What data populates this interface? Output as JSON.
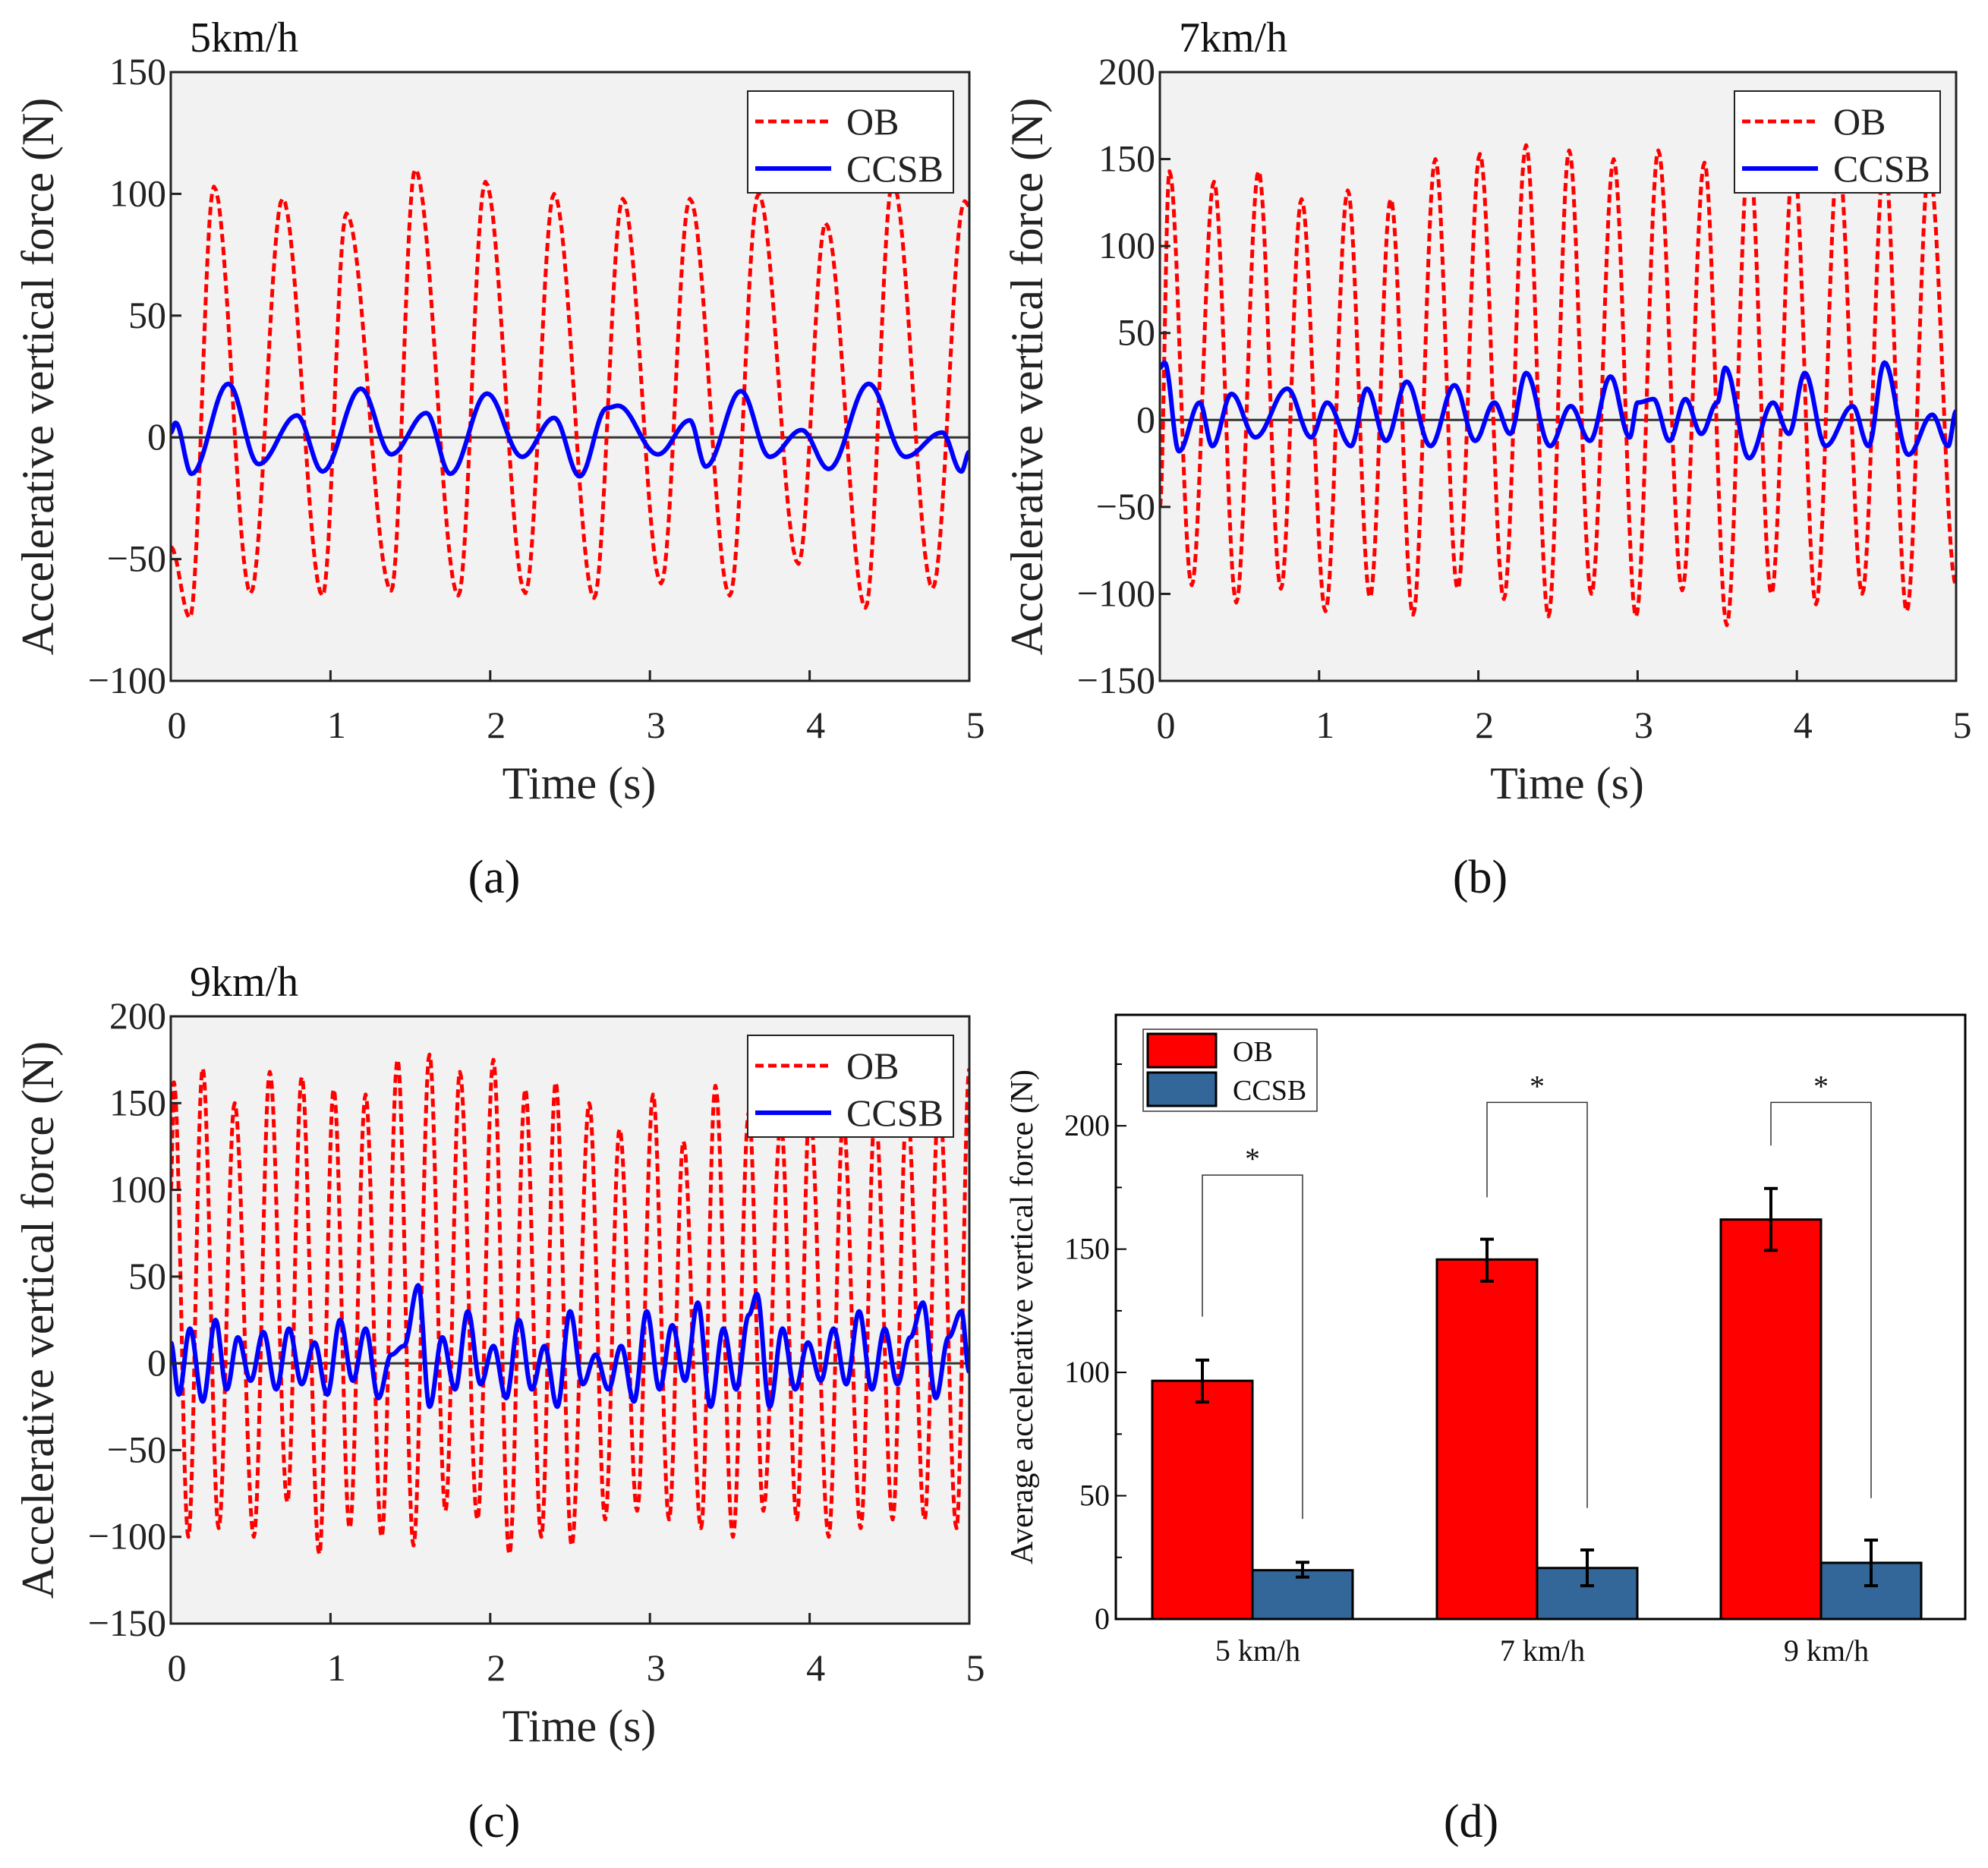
{
  "colors": {
    "ob": "#ff0000",
    "ccsb": "#0000ff",
    "bar_ob": "#ff0000",
    "bar_ccsb": "#336699",
    "plot_bg": "#f2f2f2"
  },
  "chart_data": [
    {
      "type": "line",
      "panel_label": "(a)",
      "title": "5km/h",
      "xlabel": "Time (s)",
      "ylabel": "Accelerative vertical force (N)",
      "xlim": [
        0,
        5
      ],
      "ylim": [
        -100,
        150
      ],
      "xticks": [
        0,
        1,
        2,
        3,
        4,
        5
      ],
      "yticks": [
        -100,
        -50,
        0,
        50,
        100,
        150
      ],
      "ytick_labels": [
        "−100",
        "−50",
        "0",
        "50",
        "100",
        "150"
      ],
      "legend": {
        "placement": "top-right",
        "entries": [
          "OB",
          "CCSB"
        ]
      },
      "series": [
        {
          "name": "OB",
          "style": "dashed",
          "t": [
            0,
            0.12,
            0.27,
            0.5,
            0.7,
            0.95,
            1.1,
            1.38,
            1.53,
            1.8,
            1.97,
            2.22,
            2.4,
            2.65,
            2.83,
            3.07,
            3.25,
            3.5,
            3.68,
            3.93,
            4.1,
            4.35,
            4.52,
            4.77,
            4.97,
            5.0
          ],
          "v": [
            -45,
            -74,
            103,
            -64,
            98,
            -65,
            92,
            -63,
            110,
            -65,
            105,
            -64,
            100,
            -66,
            98,
            -60,
            98,
            -65,
            100,
            -52,
            88,
            -70,
            105,
            -62,
            97,
            95
          ]
        },
        {
          "name": "CCSB",
          "style": "solid",
          "t": [
            0,
            0.03,
            0.13,
            0.36,
            0.55,
            0.79,
            0.95,
            1.19,
            1.38,
            1.6,
            1.75,
            1.98,
            2.2,
            2.4,
            2.56,
            2.73,
            2.8,
            3.05,
            3.25,
            3.35,
            3.57,
            3.75,
            3.95,
            4.12,
            4.37,
            4.6,
            4.83,
            4.95,
            5.0
          ],
          "v": [
            2,
            6,
            -15,
            22,
            -11,
            9,
            -14,
            20,
            -7,
            10,
            -15,
            18,
            -8,
            8,
            -16,
            12,
            13,
            -7,
            7,
            -12,
            19,
            -8,
            3,
            -13,
            22,
            -8,
            2,
            -14,
            -6
          ]
        }
      ]
    },
    {
      "type": "line",
      "panel_label": "(b)",
      "title": "7km/h",
      "xlabel": "Time (s)",
      "ylabel": "Accelerative vertical force (N)",
      "xlim": [
        0,
        5
      ],
      "ylim": [
        -150,
        200
      ],
      "xticks": [
        0,
        1,
        2,
        3,
        4,
        5
      ],
      "yticks": [
        -150,
        -100,
        -50,
        0,
        50,
        100,
        150,
        200
      ],
      "ytick_labels": [
        "−150",
        "−100",
        "−50",
        "0",
        "50",
        "100",
        "150",
        "200"
      ],
      "legend": {
        "placement": "top-right",
        "entries": [
          "OB",
          "CCSB"
        ]
      },
      "series": [
        {
          "name": "OB",
          "style": "dashed",
          "t": [
            0,
            0.06,
            0.2,
            0.34,
            0.48,
            0.62,
            0.76,
            0.89,
            1.04,
            1.18,
            1.32,
            1.45,
            1.59,
            1.73,
            1.87,
            2.01,
            2.16,
            2.3,
            2.44,
            2.57,
            2.71,
            2.85,
            2.99,
            3.13,
            3.28,
            3.42,
            3.56,
            3.7,
            3.84,
            3.98,
            4.12,
            4.26,
            4.41,
            4.55,
            4.69,
            4.83,
            5.0
          ],
          "v": [
            -50,
            143,
            -95,
            137,
            -105,
            143,
            -97,
            127,
            -110,
            132,
            -102,
            127,
            -112,
            150,
            -97,
            153,
            -103,
            158,
            -113,
            155,
            -100,
            150,
            -113,
            155,
            -98,
            148,
            -118,
            155,
            -100,
            150,
            -106,
            152,
            -100,
            150,
            -110,
            145,
            -95
          ]
        },
        {
          "name": "CCSB",
          "style": "solid",
          "t": [
            0,
            0.03,
            0.12,
            0.25,
            0.33,
            0.45,
            0.6,
            0.8,
            0.95,
            1.05,
            1.2,
            1.3,
            1.42,
            1.55,
            1.7,
            1.85,
            1.98,
            2.1,
            2.2,
            2.3,
            2.45,
            2.58,
            2.7,
            2.83,
            2.95,
            3.0,
            3.1,
            3.2,
            3.3,
            3.4,
            3.5,
            3.55,
            3.7,
            3.85,
            3.95,
            4.05,
            4.18,
            4.35,
            4.45,
            4.55,
            4.7,
            4.85,
            4.95,
            5.0
          ],
          "v": [
            30,
            33,
            -18,
            10,
            -15,
            15,
            -10,
            18,
            -10,
            10,
            -15,
            18,
            -12,
            22,
            -15,
            20,
            -12,
            10,
            -8,
            27,
            -15,
            8,
            -12,
            25,
            -10,
            10,
            12,
            -12,
            12,
            -8,
            10,
            30,
            -22,
            10,
            -8,
            27,
            -15,
            8,
            -15,
            33,
            -20,
            3,
            -15,
            5
          ]
        }
      ]
    },
    {
      "type": "line",
      "panel_label": "(c)",
      "title": "9km/h",
      "xlabel": "Time (s)",
      "ylabel": "Accelerative vertical force (N)",
      "xlim": [
        0,
        5
      ],
      "ylim": [
        -150,
        200
      ],
      "xticks": [
        0,
        1,
        2,
        3,
        4,
        5
      ],
      "yticks": [
        -150,
        -100,
        -50,
        0,
        50,
        100,
        150,
        200
      ],
      "ytick_labels": [
        "−150",
        "−100",
        "−50",
        "0",
        "50",
        "100",
        "150",
        "200"
      ],
      "legend": {
        "placement": "top-right",
        "entries": [
          "OB",
          "CCSB"
        ]
      },
      "series": [
        {
          "name": "OB",
          "style": "dashed",
          "t": [
            0,
            0.02,
            0.11,
            0.2,
            0.3,
            0.4,
            0.52,
            0.62,
            0.73,
            0.82,
            0.93,
            1.02,
            1.12,
            1.22,
            1.32,
            1.42,
            1.52,
            1.62,
            1.72,
            1.81,
            1.92,
            2.02,
            2.12,
            2.22,
            2.32,
            2.41,
            2.51,
            2.62,
            2.72,
            2.81,
            2.92,
            3.02,
            3.12,
            3.21,
            3.32,
            3.41,
            3.52,
            3.62,
            3.71,
            3.82,
            3.92,
            4.0,
            4.12,
            4.21,
            4.32,
            4.41,
            4.52,
            4.61,
            4.72,
            4.81,
            4.92,
            5.0
          ],
          "v": [
            100,
            162,
            -100,
            170,
            -95,
            150,
            -100,
            168,
            -80,
            165,
            -110,
            158,
            -95,
            155,
            -100,
            175,
            -105,
            178,
            -85,
            168,
            -90,
            175,
            -110,
            158,
            -100,
            162,
            -105,
            150,
            -90,
            135,
            -85,
            155,
            -90,
            128,
            -95,
            160,
            -100,
            145,
            -85,
            138,
            -90,
            148,
            -100,
            140,
            -95,
            145,
            -90,
            150,
            -90,
            155,
            -95,
            170
          ]
        },
        {
          "name": "CCSB",
          "style": "solid",
          "t": [
            0,
            0.05,
            0.12,
            0.2,
            0.28,
            0.35,
            0.42,
            0.5,
            0.58,
            0.66,
            0.74,
            0.82,
            0.9,
            0.98,
            1.06,
            1.14,
            1.22,
            1.3,
            1.38,
            1.46,
            1.55,
            1.62,
            1.7,
            1.78,
            1.86,
            1.94,
            2.02,
            2.1,
            2.18,
            2.26,
            2.34,
            2.42,
            2.5,
            2.58,
            2.66,
            2.74,
            2.82,
            2.9,
            2.98,
            3.06,
            3.14,
            3.22,
            3.3,
            3.38,
            3.46,
            3.54,
            3.62,
            3.67,
            3.75,
            3.83,
            3.91,
            3.99,
            4.07,
            4.15,
            4.23,
            4.31,
            4.39,
            4.47,
            4.55,
            4.63,
            4.71,
            4.79,
            4.87,
            4.95,
            5.0
          ],
          "v": [
            12,
            -18,
            20,
            -22,
            25,
            -15,
            15,
            -10,
            18,
            -15,
            20,
            -12,
            12,
            -18,
            25,
            -10,
            20,
            -20,
            5,
            10,
            45,
            -25,
            15,
            -15,
            30,
            -12,
            10,
            -20,
            25,
            -15,
            10,
            -25,
            30,
            -12,
            5,
            -15,
            10,
            -22,
            30,
            -15,
            22,
            -10,
            35,
            -25,
            20,
            -15,
            28,
            40,
            -25,
            20,
            -15,
            12,
            -10,
            20,
            -12,
            30,
            -15,
            20,
            -12,
            15,
            35,
            -20,
            15,
            30,
            -5
          ]
        }
      ]
    },
    {
      "type": "bar",
      "panel_label": "(d)",
      "xlabel": "",
      "ylabel": "Average accelerative vertical force (N)",
      "ylim": [
        0,
        245
      ],
      "yticks": [
        0,
        50,
        100,
        150,
        200
      ],
      "categories": [
        "5 km/h",
        "7 km/h",
        "9 km/h"
      ],
      "legend": {
        "placement": "top-left",
        "entries": [
          "OB",
          "CCSB"
        ]
      },
      "series": [
        {
          "name": "OB",
          "values": [
            96.6,
            145.8,
            162
          ],
          "err_low": [
            88,
            137,
            149.5
          ],
          "err_high": [
            105,
            154,
            174.6
          ]
        },
        {
          "name": "CCSB",
          "values": [
            19.8,
            20.7,
            22.8
          ],
          "err_low": [
            17,
            13.5,
            13.5
          ],
          "err_high": [
            23,
            28,
            32
          ]
        }
      ],
      "significance": [
        {
          "label": "*",
          "top": 180,
          "left_end": 122.6,
          "right_end": 40.6
        },
        {
          "label": "*",
          "top": 209.5,
          "left_end": 171,
          "right_end": 45
        },
        {
          "label": "*",
          "top": 209.5,
          "left_end": 192,
          "right_end": 49
        }
      ]
    }
  ]
}
